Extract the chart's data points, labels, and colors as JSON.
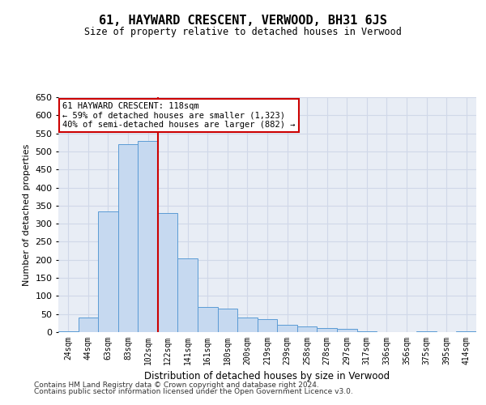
{
  "title": "61, HAYWARD CRESCENT, VERWOOD, BH31 6JS",
  "subtitle": "Size of property relative to detached houses in Verwood",
  "xlabel": "Distribution of detached houses by size in Verwood",
  "ylabel": "Number of detached properties",
  "categories": [
    "24sqm",
    "44sqm",
    "63sqm",
    "83sqm",
    "102sqm",
    "122sqm",
    "141sqm",
    "161sqm",
    "180sqm",
    "200sqm",
    "219sqm",
    "239sqm",
    "258sqm",
    "278sqm",
    "297sqm",
    "317sqm",
    "336sqm",
    "356sqm",
    "375sqm",
    "395sqm",
    "414sqm"
  ],
  "values": [
    3,
    40,
    335,
    520,
    530,
    330,
    205,
    70,
    65,
    40,
    35,
    20,
    15,
    12,
    10,
    2,
    0,
    0,
    3,
    0,
    2
  ],
  "bar_color": "#c6d9f0",
  "bar_edge_color": "#5b9bd5",
  "grid_color": "#d0d8e8",
  "background_color": "#e8edf5",
  "vline_x": 4.5,
  "vline_color": "#cc0000",
  "annotation_text": "61 HAYWARD CRESCENT: 118sqm\n← 59% of detached houses are smaller (1,323)\n40% of semi-detached houses are larger (882) →",
  "annotation_box_color": "#ffffff",
  "annotation_box_edge": "#cc0000",
  "ylim": [
    0,
    650
  ],
  "yticks": [
    0,
    50,
    100,
    150,
    200,
    250,
    300,
    350,
    400,
    450,
    500,
    550,
    600,
    650
  ],
  "footnote1": "Contains HM Land Registry data © Crown copyright and database right 2024.",
  "footnote2": "Contains public sector information licensed under the Open Government Licence v3.0."
}
